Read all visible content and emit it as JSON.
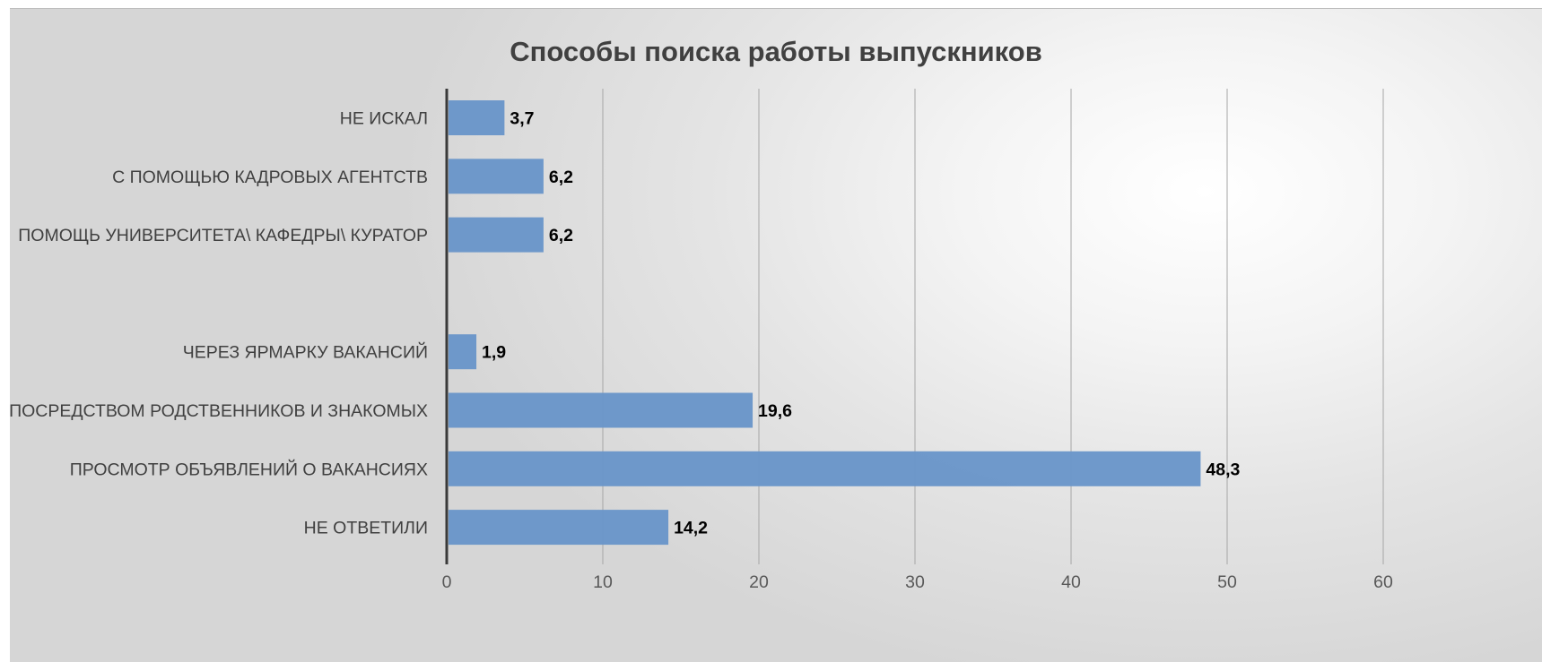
{
  "chart_data": {
    "type": "bar",
    "orientation": "horizontal",
    "title": "Способы поиска работы выпускников",
    "categories": [
      "НЕ ИСКАЛ",
      "С ПОМОЩЬЮ КАДРОВЫХ АГЕНТСТВ",
      "ПОМОЩЬ УНИВЕРСИТЕТА\\ КАФЕДРЫ\\ КУРАТОР",
      "",
      "ЧЕРЕЗ  ЯРМАРКУ ВАКАНСИЙ",
      "ПОСРЕДСТВОМ РОДСТВЕННИКОВ И ЗНАКОМЫХ",
      "ПРОСМОТР ОБЪЯВЛЕНИЙ О ВАКАНСИЯХ",
      "НЕ ОТВЕТИЛИ"
    ],
    "values": [
      3.7,
      6.2,
      6.2,
      null,
      1.9,
      19.6,
      48.3,
      14.2
    ],
    "data_labels": [
      "3,7",
      "6,2",
      "6,2",
      "",
      "1,9",
      "19,6",
      "48,3",
      "14,2"
    ],
    "xlim": [
      0,
      60
    ],
    "xticks": [
      0,
      10,
      20,
      30,
      40,
      50,
      60
    ],
    "xlabel": "",
    "ylabel": "",
    "grid": "vertical",
    "legend": "none",
    "bar_color": "#6a96c9"
  }
}
